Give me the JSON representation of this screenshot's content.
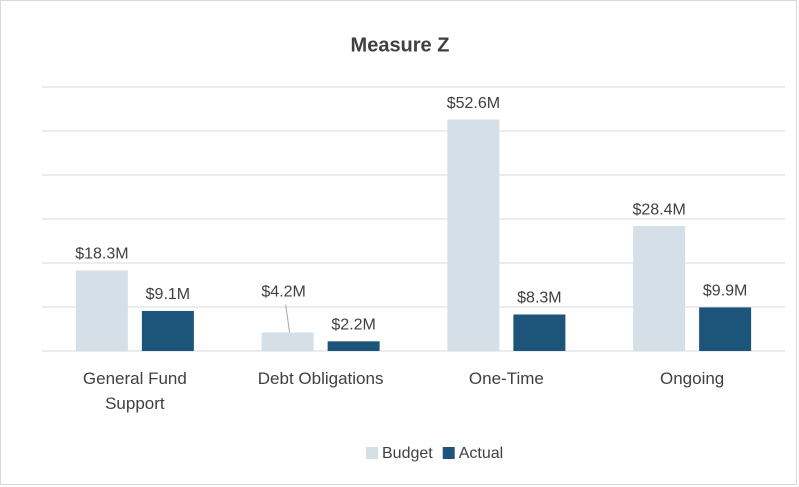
{
  "chart_data": {
    "type": "bar",
    "title": "Measure Z",
    "categories": [
      "General Fund Support",
      "Debt Obligations",
      "One-Time",
      "Ongoing"
    ],
    "series": [
      {
        "name": "Budget",
        "color": "#d5dfe7",
        "values": [
          18.3,
          4.2,
          52.6,
          28.4
        ],
        "value_labels": [
          "$18.3M",
          "$4.2M",
          "$52.6M",
          "$28.4M"
        ]
      },
      {
        "name": "Actual",
        "color": "#1d5479",
        "values": [
          9.1,
          2.2,
          8.3,
          9.9
        ],
        "value_labels": [
          "$9.1M",
          "$2.2M",
          "$8.3M",
          "$9.9M"
        ]
      }
    ],
    "ylim": [
      0,
      60
    ],
    "yticks": [
      0,
      10,
      20,
      30,
      40,
      50,
      60
    ],
    "grid": true,
    "legend": "bottom"
  }
}
